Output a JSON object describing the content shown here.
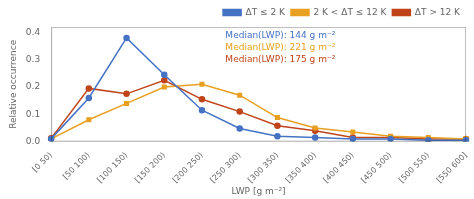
{
  "chart_data": {
    "type": "line",
    "categories": [
      "[0 50)",
      "[50 100)",
      "[100 150)",
      "[150 200)",
      "[200 250)",
      "[250 300)",
      "[300 350)",
      "[350 400)",
      "[400 450)",
      "[450 500)",
      "[500 550)",
      "[550 600]"
    ],
    "series": [
      {
        "name": "ΔT ≤ 2 K",
        "color": "#4472C4",
        "marker": "circle",
        "values": [
          0.01,
          0.16,
          0.38,
          0.245,
          0.115,
          0.048,
          0.02,
          0.015,
          0.01,
          0.01,
          0.005,
          0.005
        ]
      },
      {
        "name": "2 K < ΔT ≤ 12 K",
        "color": "#E8A020",
        "marker": "square",
        "values": [
          0.01,
          0.08,
          0.14,
          0.2,
          0.21,
          0.17,
          0.088,
          0.05,
          0.035,
          0.02,
          0.015,
          0.01
        ]
      },
      {
        "name": "ΔT > 12 K",
        "color": "#C0441A",
        "marker": "circle",
        "values": [
          0.012,
          0.195,
          0.175,
          0.225,
          0.155,
          0.11,
          0.058,
          0.04,
          0.015,
          0.015,
          0.01,
          0.01
        ]
      }
    ],
    "xlabel": "LWP [g m⁻²]",
    "ylabel": "Relative occurrence",
    "ylim": [
      0,
      0.42
    ],
    "yticks": [
      {
        "value": 0,
        "label": "0.0"
      },
      0.1,
      0.2,
      0.3,
      0.4
    ],
    "grid": false,
    "legend": "upper right",
    "annotations": [
      {
        "text": "Median(LWP): 144 g m⁻²",
        "color": "#4472C4"
      },
      {
        "text": "Median(LWP): 221 g m⁻²",
        "color": "#E8A020"
      },
      {
        "text": "Median(LWP): 175 g m⁻²",
        "color": "#C0441A"
      }
    ]
  }
}
